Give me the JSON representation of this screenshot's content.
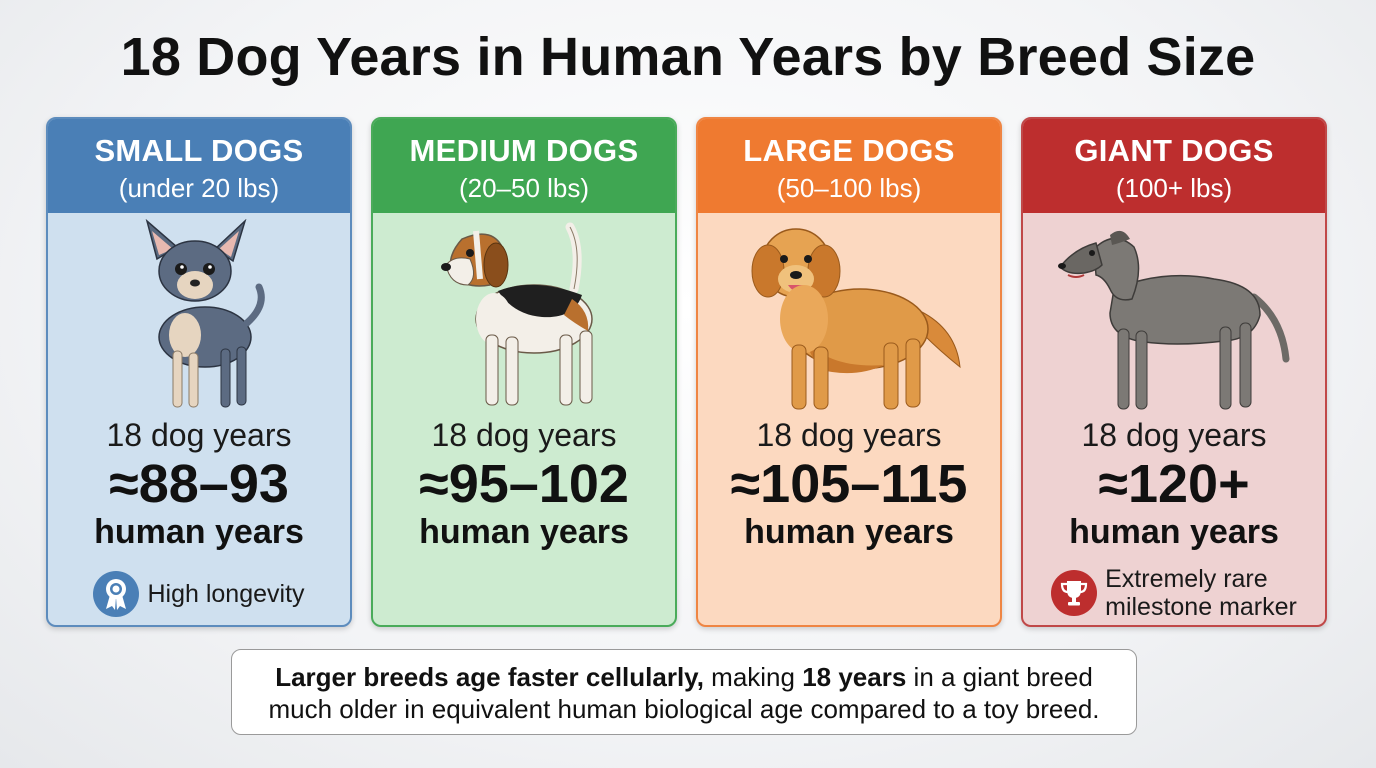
{
  "title": "18 Dog Years in Human Years by Breed Size",
  "cards": [
    {
      "name": "SMALL DOGS",
      "range": "(under 20 lbs)",
      "dog_years": "18 dog years",
      "human_value": "≈88–93",
      "human_label": "human years",
      "note": "High longevity",
      "note_icon": "award-ribbon-icon",
      "header_color": "#4a7fb6",
      "body_color": "#cfe0ef",
      "border_color": "#5d8cbd"
    },
    {
      "name": "MEDIUM DOGS",
      "range": "(20–50 lbs)",
      "dog_years": "18 dog years",
      "human_value": "≈95–102",
      "human_label": "human years",
      "note": "",
      "header_color": "#3fa652",
      "body_color": "#cdebd0",
      "border_color": "#4aab5a"
    },
    {
      "name": "LARGE DOGS",
      "range": "(50–100 lbs)",
      "dog_years": "18 dog years",
      "human_value": "≈105–115",
      "human_label": "human years",
      "note": "",
      "header_color": "#ef7a30",
      "body_color": "#fcd9c0",
      "border_color": "#ef8543"
    },
    {
      "name": "GIANT DOGS",
      "range": "(100+ lbs)",
      "dog_years": "18 dog years",
      "human_value": "≈120+",
      "human_label": "human years",
      "note_line1": "Extremely rare",
      "note_line2": "milestone marker",
      "note_icon": "trophy-icon",
      "header_color": "#bd2e2e",
      "body_color": "#eed2d2",
      "border_color": "#c04848"
    }
  ],
  "footer": {
    "bold1": "Larger breeds age faster cellularly,",
    "text1": " making ",
    "bold2": "18 years",
    "text2": " in a giant breed",
    "line2": "much older in equivalent human biological age compared to a toy breed."
  }
}
